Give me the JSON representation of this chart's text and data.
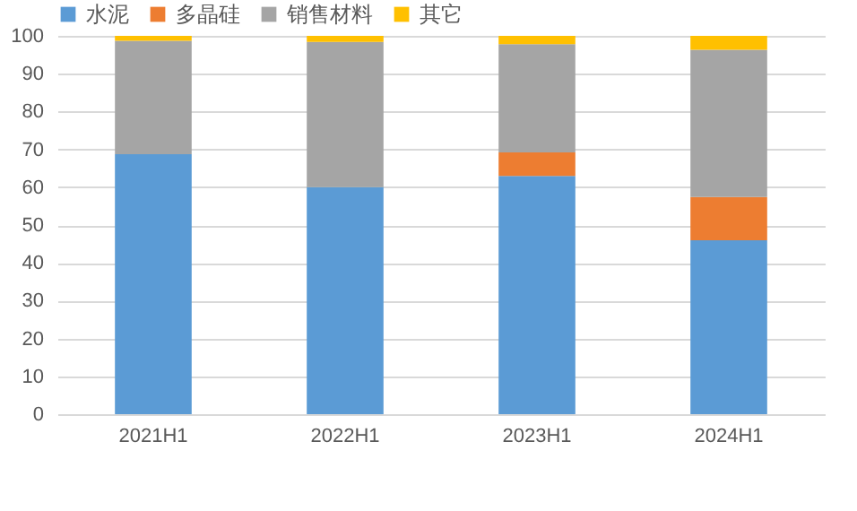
{
  "chart_data": {
    "type": "bar",
    "stacked": true,
    "categories": [
      "2021H1",
      "2022H1",
      "2023H1",
      "2024H1"
    ],
    "series": [
      {
        "name": "水泥",
        "color": "#5b9bd5",
        "values": [
          68.7,
          60,
          63,
          46
        ]
      },
      {
        "name": "多晶硅",
        "color": "#ed7d31",
        "values": [
          0,
          0,
          6.2,
          11.4
        ]
      },
      {
        "name": "销售材料",
        "color": "#a5a5a5",
        "values": [
          30,
          38.4,
          28.6,
          38.9
        ]
      },
      {
        "name": "其它",
        "color": "#ffc000",
        "values": [
          1.3,
          1.6,
          2.2,
          3.7
        ]
      }
    ],
    "ylim": [
      0,
      100
    ],
    "yticks": [
      0,
      10,
      20,
      30,
      40,
      50,
      60,
      70,
      80,
      90,
      100
    ],
    "grid": "y",
    "legend": "top"
  }
}
